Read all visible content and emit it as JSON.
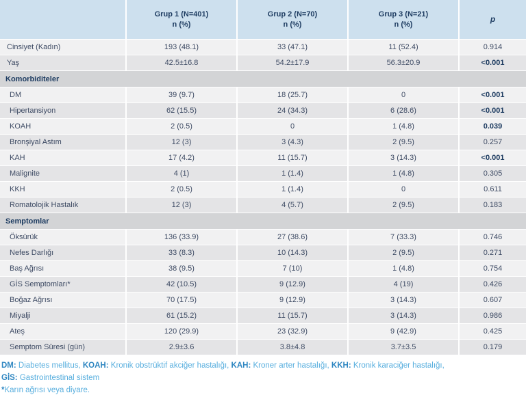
{
  "table": {
    "header": {
      "corner": "",
      "groups": [
        {
          "line1": "Grup 1 (N=401)",
          "line2": "n (%)"
        },
        {
          "line1": "Grup 2 (N=70)",
          "line2": "n (%)"
        },
        {
          "line1": "Grup 3 (N=21)",
          "line2": "n (%)"
        }
      ],
      "p": "p"
    },
    "rows": [
      {
        "type": "data",
        "sub": false,
        "label": "Cinsiyet (Kadın)",
        "values": [
          "193 (48.1)",
          "33 (47.1)",
          "11 (52.4)"
        ],
        "p": "0.914",
        "p_bold": false
      },
      {
        "type": "data",
        "sub": false,
        "label": "Yaş",
        "values": [
          "42.5±16.8",
          "54.2±17.9",
          "56.3±20.9"
        ],
        "p": "<0.001",
        "p_bold": true
      },
      {
        "type": "section",
        "label": "Komorbiditeler"
      },
      {
        "type": "data",
        "sub": true,
        "label": "DM",
        "values": [
          "39 (9.7)",
          "18 (25.7)",
          "0"
        ],
        "p": "<0.001",
        "p_bold": true
      },
      {
        "type": "data",
        "sub": true,
        "label": "Hipertansiyon",
        "values": [
          "62 (15.5)",
          "24 (34.3)",
          "6 (28.6)"
        ],
        "p": "<0.001",
        "p_bold": true
      },
      {
        "type": "data",
        "sub": true,
        "label": "KOAH",
        "values": [
          "2 (0.5)",
          "0",
          "1 (4.8)"
        ],
        "p": "0.039",
        "p_bold": true
      },
      {
        "type": "data",
        "sub": true,
        "label": "Bronşiyal Astım",
        "values": [
          "12 (3)",
          "3 (4.3)",
          "2 (9.5)"
        ],
        "p": "0.257",
        "p_bold": false
      },
      {
        "type": "data",
        "sub": true,
        "label": "KAH",
        "values": [
          "17 (4.2)",
          "11 (15.7)",
          "3 (14.3)"
        ],
        "p": "<0.001",
        "p_bold": true
      },
      {
        "type": "data",
        "sub": true,
        "label": "Malignite",
        "values": [
          "4 (1)",
          "1 (1.4)",
          "1 (4.8)"
        ],
        "p": "0.305",
        "p_bold": false
      },
      {
        "type": "data",
        "sub": true,
        "label": "KKH",
        "values": [
          "2 (0.5)",
          "1 (1.4)",
          "0"
        ],
        "p": "0.611",
        "p_bold": false
      },
      {
        "type": "data",
        "sub": true,
        "label": "Romatolojik Hastalık",
        "values": [
          "12 (3)",
          "4 (5.7)",
          "2 (9.5)"
        ],
        "p": "0.183",
        "p_bold": false
      },
      {
        "type": "section",
        "label": "Semptomlar"
      },
      {
        "type": "data",
        "sub": true,
        "label": "Öksürük",
        "values": [
          "136 (33.9)",
          "27 (38.6)",
          "7 (33.3)"
        ],
        "p": "0.746",
        "p_bold": false
      },
      {
        "type": "data",
        "sub": true,
        "label": "Nefes Darlığı",
        "values": [
          "33 (8.3)",
          "10 (14.3)",
          "2 (9.5)"
        ],
        "p": "0.271",
        "p_bold": false
      },
      {
        "type": "data",
        "sub": true,
        "label": "Baş Ağrısı",
        "values": [
          "38 (9.5)",
          "7 (10)",
          "1 (4.8)"
        ],
        "p": "0.754",
        "p_bold": false
      },
      {
        "type": "data",
        "sub": true,
        "label": "GİS Semptomları*",
        "values": [
          "42 (10.5)",
          "9 (12.9)",
          "4 (19)"
        ],
        "p": "0.426",
        "p_bold": false
      },
      {
        "type": "data",
        "sub": true,
        "label": "Boğaz Ağrısı",
        "values": [
          "70 (17.5)",
          "9 (12.9)",
          "3 (14.3)"
        ],
        "p": "0.607",
        "p_bold": false
      },
      {
        "type": "data",
        "sub": true,
        "label": "Miyalji",
        "values": [
          "61 (15.2)",
          "11 (15.7)",
          "3 (14.3)"
        ],
        "p": "0.986",
        "p_bold": false
      },
      {
        "type": "data",
        "sub": true,
        "label": "Ateş",
        "values": [
          "120 (29.9)",
          "23 (32.9)",
          "9 (42.9)"
        ],
        "p": "0.425",
        "p_bold": false
      },
      {
        "type": "data",
        "sub": true,
        "label": "Semptom Süresi (gün)",
        "values": [
          "2.9±3.6",
          "3.8±4.8",
          "3.7±3.5"
        ],
        "p": "0.179",
        "p_bold": false
      }
    ]
  },
  "footnotes": {
    "lines": [
      {
        "parts": [
          {
            "text": "DM:",
            "bold": true
          },
          {
            "text": " Diabetes mellitus, ",
            "bold": false
          },
          {
            "text": "KOAH:",
            "bold": true
          },
          {
            "text": " Kronik obstrüktif akciğer hastalığı, ",
            "bold": false
          },
          {
            "text": "KAH:",
            "bold": true
          },
          {
            "text": " Kroner arter hastalığı, ",
            "bold": false
          },
          {
            "text": "KKH:",
            "bold": true
          },
          {
            "text": " Kronik karaciğer hastalığı,",
            "bold": false
          }
        ]
      },
      {
        "parts": [
          {
            "text": "GİS:",
            "bold": true
          },
          {
            "text": " Gastrointestinal sistem",
            "bold": false
          }
        ]
      },
      {
        "parts": [
          {
            "text": "*",
            "bold": true
          },
          {
            "text": "Karın ağrısı veya diyare.",
            "bold": false
          }
        ]
      }
    ]
  },
  "colors": {
    "header_bg": "#cde0ee",
    "header_text": "#1e3c61",
    "row_light": "#f1f1f2",
    "row_dark": "#e4e4e6",
    "section_bg": "#d3d4d6",
    "data_text": "#3e4b64",
    "footnote_label": "#2e86c1",
    "footnote_text": "#57aede"
  }
}
